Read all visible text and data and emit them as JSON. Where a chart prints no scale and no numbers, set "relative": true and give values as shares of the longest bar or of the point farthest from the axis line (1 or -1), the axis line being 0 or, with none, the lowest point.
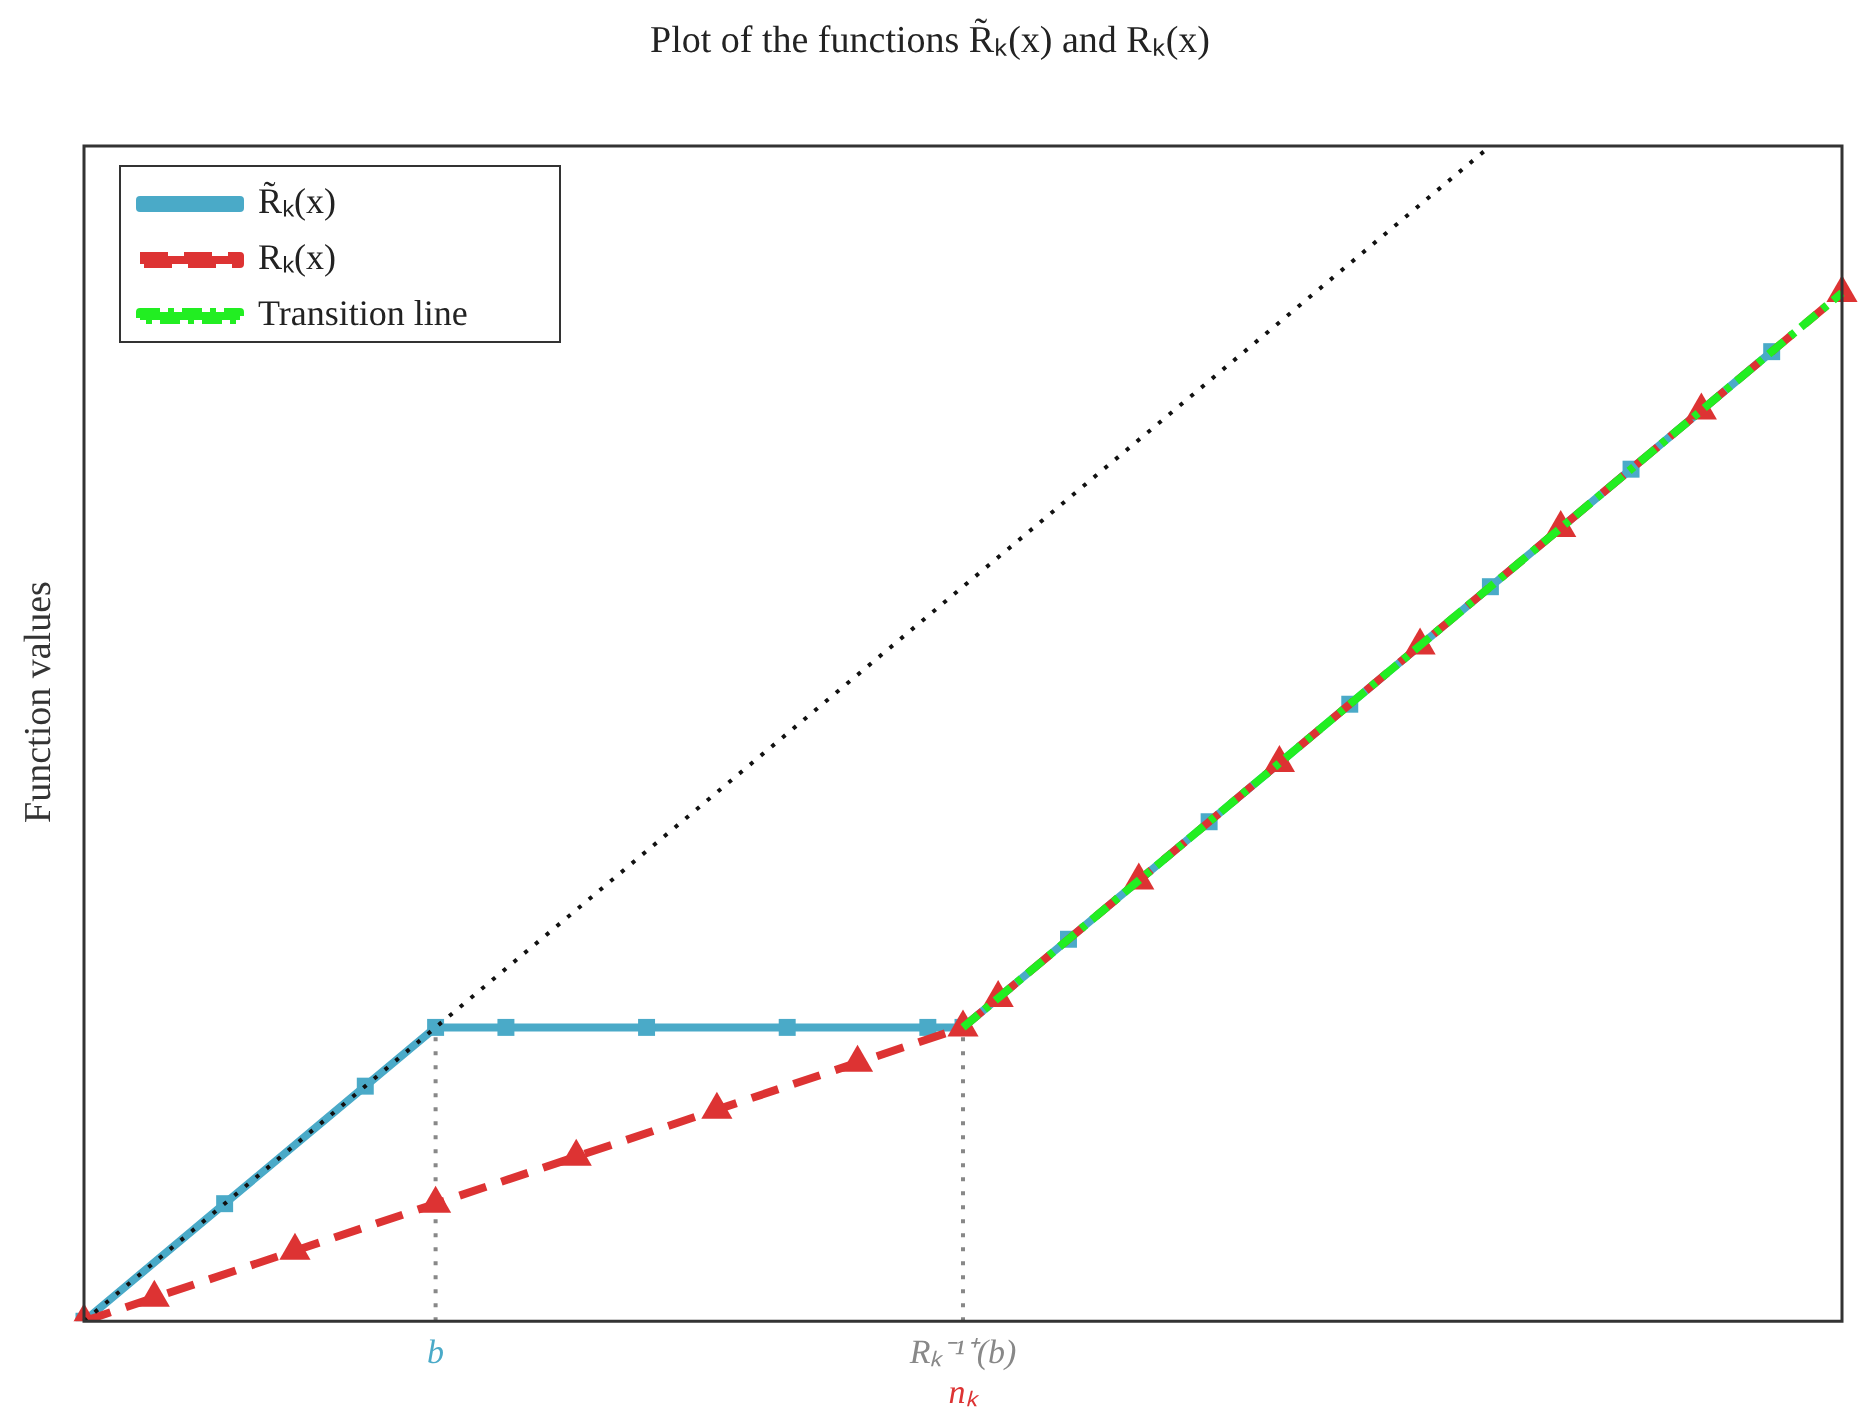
{
  "chart_data": {
    "type": "line",
    "title": "Plot of the functions R̃ₖ(x) and Rₖ(x)",
    "ylabel": "Function values",
    "relative": true,
    "grid": false,
    "legend": "top left",
    "categories": [
      null,
      null,
      null,
      null,
      null,
      null,
      null,
      null,
      null,
      null,
      "b",
      null,
      null,
      null,
      null,
      null,
      null,
      null,
      null,
      null,
      null,
      null,
      null,
      null,
      null,
      "Rₖ⁻¹⁺(b)",
      null,
      null,
      null,
      null,
      null,
      null,
      null,
      null,
      null,
      null,
      null,
      null,
      null,
      null,
      null,
      null,
      null,
      null,
      null,
      null,
      null,
      null,
      null,
      null,
      null
    ],
    "series": [
      {
        "name": "R̃ₖ(x)",
        "color": "#4aaac8",
        "marker": "square",
        "line_style": "solid",
        "values": [
          0,
          null,
          null,
          null,
          0.1,
          null,
          null,
          null,
          0.2,
          null,
          0.25,
          null,
          0.25,
          null,
          null,
          null,
          0.25,
          null,
          null,
          null,
          0.25,
          null,
          null,
          null,
          0.25,
          0.25,
          null,
          null,
          0.325,
          null,
          null,
          null,
          0.425,
          null,
          null,
          null,
          0.525,
          null,
          null,
          null,
          0.625,
          null,
          null,
          null,
          0.725,
          null,
          null,
          null,
          0.825,
          null,
          null
        ]
      },
      {
        "name": "Rₖ(x)",
        "color": "#dd3333",
        "marker": "triangle",
        "line_style": "dashed",
        "values": [
          0,
          null,
          0.02,
          null,
          null,
          null,
          0.06,
          null,
          null,
          null,
          0.1,
          null,
          null,
          null,
          0.14,
          null,
          null,
          null,
          0.18,
          null,
          null,
          null,
          0.22,
          null,
          null,
          0.25,
          0.275,
          null,
          null,
          null,
          0.375,
          null,
          null,
          null,
          0.475,
          null,
          null,
          null,
          0.575,
          null,
          null,
          null,
          0.675,
          null,
          null,
          null,
          0.775,
          null,
          null,
          null,
          0.875
        ]
      },
      {
        "name": "Transition line",
        "color": "#22ee22",
        "marker": "none",
        "line_style": "dashdot",
        "values": [
          null,
          null,
          null,
          null,
          null,
          null,
          null,
          null,
          null,
          null,
          null,
          null,
          null,
          null,
          null,
          null,
          null,
          null,
          null,
          null,
          null,
          null,
          null,
          null,
          null,
          0.25,
          null,
          null,
          null,
          null,
          null,
          null,
          null,
          null,
          null,
          null,
          null,
          null,
          null,
          null,
          null,
          null,
          null,
          null,
          null,
          null,
          null,
          null,
          null,
          null,
          0.875
        ]
      },
      {
        "color": "#111111",
        "marker": "none",
        "line_style": "dotted",
        "values": [
          0,
          null,
          null,
          null,
          null,
          null,
          null,
          null,
          null,
          null,
          null,
          null,
          null,
          null,
          null,
          null,
          null,
          null,
          null,
          null,
          null,
          null,
          null,
          null,
          null,
          null,
          null,
          null,
          null,
          null,
          null,
          null,
          null,
          null,
          null,
          null,
          null,
          null,
          null,
          null,
          1,
          null,
          null,
          null,
          null,
          null,
          null,
          null,
          null,
          null,
          null
        ]
      }
    ],
    "ref_lines": [
      {
        "axis": "x",
        "value": "b",
        "color": "#888888",
        "line_style": "dotted"
      },
      {
        "axis": "x",
        "value": "Rₖ⁻¹⁺(b)",
        "color": "#888888",
        "line_style": "dotted"
      }
    ],
    "annotations": [
      "nₖ"
    ]
  }
}
